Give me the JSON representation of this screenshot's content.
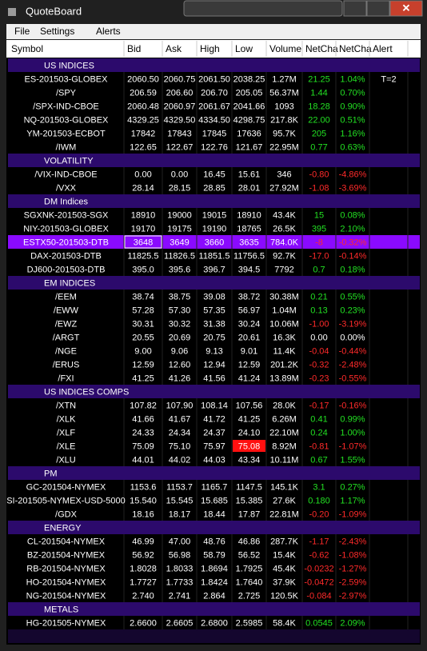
{
  "window": {
    "title": "QuoteBoard"
  },
  "menu": [
    "File",
    "Settings",
    "Alerts"
  ],
  "columns": [
    "Symbol",
    "Bid",
    "Ask",
    "High",
    "Low",
    "Volume",
    "NetCha",
    "NetCha",
    "Alert"
  ],
  "groups": [
    {
      "name": "US INDICES",
      "rows": [
        {
          "cells": [
            "ES-201503-GLOBEX",
            "2060.50",
            "2060.75",
            "2061.50",
            "2038.25",
            "1.27M",
            "21.25",
            "1.04%",
            "T=2"
          ]
        },
        {
          "cells": [
            "/SPY",
            "206.59",
            "206.60",
            "206.70",
            "205.05",
            "56.37M",
            "1.44",
            "0.70%"
          ]
        },
        {
          "cells": [
            "/SPX-IND-CBOE",
            "2060.48",
            "2060.97",
            "2061.67",
            "2041.66",
            "1093",
            "18.28",
            "0.90%"
          ]
        },
        {
          "cells": [
            "NQ-201503-GLOBEX",
            "4329.25",
            "4329.50",
            "4334.50",
            "4298.75",
            "217.8K",
            "22.00",
            "0.51%"
          ]
        },
        {
          "cells": [
            "YM-201503-ECBOT",
            "17842",
            "17843",
            "17845",
            "17636",
            "95.7K",
            "205",
            "1.16%"
          ]
        },
        {
          "cells": [
            "/IWM",
            "122.65",
            "122.67",
            "122.76",
            "121.67",
            "22.95M",
            "0.77",
            "0.63%"
          ]
        }
      ]
    },
    {
      "name": "VOLATILITY",
      "rows": [
        {
          "cells": [
            "/VIX-IND-CBOE",
            "0.00",
            "0.00",
            "16.45",
            "15.61",
            "346",
            "-0.80",
            "-4.86%"
          ]
        },
        {
          "cells": [
            "/VXX",
            "28.14",
            "28.15",
            "28.85",
            "28.01",
            "27.92M",
            "-1.08",
            "-3.69%"
          ]
        }
      ]
    },
    {
      "name": "DM Indices",
      "rows": [
        {
          "cells": [
            "SGXNK-201503-SGX",
            "18910",
            "19000",
            "19015",
            "18910",
            "43.4K",
            "15",
            "0.08%"
          ]
        },
        {
          "cells": [
            "NIY-201503-GLOBEX",
            "19170",
            "19175",
            "19190",
            "18765",
            "26.5K",
            "395",
            "2.10%"
          ]
        },
        {
          "cells": [
            "ESTX50-201503-DTB",
            "3648",
            "3649",
            "3660",
            "3635",
            "784.0K",
            "-8",
            "-0.32%"
          ],
          "selected": true
        },
        {
          "cells": [
            "DAX-201503-DTB",
            "11825.5",
            "11826.5",
            "11851.5",
            "11756.5",
            "92.7K",
            "-17.0",
            "-0.14%"
          ]
        },
        {
          "cells": [
            "DJ600-201503-DTB",
            "395.0",
            "395.6",
            "396.7",
            "394.5",
            "7792",
            "0.7",
            "0.18%"
          ]
        }
      ]
    },
    {
      "name": "EM INDICES",
      "rows": [
        {
          "cells": [
            "/EEM",
            "38.74",
            "38.75",
            "39.08",
            "38.72",
            "30.38M",
            "0.21",
            "0.55%"
          ]
        },
        {
          "cells": [
            "/EWW",
            "57.28",
            "57.30",
            "57.35",
            "56.97",
            "1.04M",
            "0.13",
            "0.23%"
          ]
        },
        {
          "cells": [
            "/EWZ",
            "30.31",
            "30.32",
            "31.38",
            "30.24",
            "10.06M",
            "-1.00",
            "-3.19%"
          ]
        },
        {
          "cells": [
            "/ARGT",
            "20.55",
            "20.69",
            "20.75",
            "20.61",
            "16.3K",
            "0.00",
            "0.00%"
          ]
        },
        {
          "cells": [
            "/NGE",
            "9.00",
            "9.06",
            "9.13",
            "9.01",
            "11.4K",
            "-0.04",
            "-0.44%"
          ]
        },
        {
          "cells": [
            "/ERUS",
            "12.59",
            "12.60",
            "12.94",
            "12.59",
            "201.2K",
            "-0.32",
            "-2.48%"
          ]
        },
        {
          "cells": [
            "/FXI",
            "41.25",
            "41.26",
            "41.56",
            "41.24",
            "13.89M",
            "-0.23",
            "-0.55%"
          ]
        }
      ]
    },
    {
      "name": "US INDICES COMPS",
      "rows": [
        {
          "cells": [
            "/XTN",
            "107.82",
            "107.90",
            "108.14",
            "107.56",
            "28.0K",
            "-0.17",
            "-0.16%"
          ]
        },
        {
          "cells": [
            "/XLK",
            "41.66",
            "41.67",
            "41.72",
            "41.25",
            "6.26M",
            "0.41",
            "0.99%"
          ]
        },
        {
          "cells": [
            "/XLF",
            "24.33",
            "24.34",
            "24.37",
            "24.10",
            "22.10M",
            "0.24",
            "1.00%"
          ]
        },
        {
          "cells": [
            "/XLE",
            "75.09",
            "75.10",
            "75.97",
            "75.08",
            "8.92M",
            "-0.81",
            "-1.07%"
          ],
          "alert_cell": 4
        },
        {
          "cells": [
            "/XLU",
            "44.01",
            "44.02",
            "44.03",
            "43.34",
            "10.11M",
            "0.67",
            "1.55%"
          ]
        }
      ]
    },
    {
      "name": "PM",
      "rows": [
        {
          "cells": [
            "GC-201504-NYMEX",
            "1153.6",
            "1153.7",
            "1165.7",
            "1147.5",
            "145.1K",
            "3.1",
            "0.27%"
          ]
        },
        {
          "cells": [
            "SI-201505-NYMEX-USD-5000",
            "15.540",
            "15.545",
            "15.685",
            "15.385",
            "27.6K",
            "0.180",
            "1.17%"
          ]
        },
        {
          "cells": [
            "/GDX",
            "18.16",
            "18.17",
            "18.44",
            "17.87",
            "22.81M",
            "-0.20",
            "-1.09%"
          ]
        }
      ]
    },
    {
      "name": "ENERGY",
      "rows": [
        {
          "cells": [
            "CL-201504-NYMEX",
            "46.99",
            "47.00",
            "48.76",
            "46.86",
            "287.7K",
            "-1.17",
            "-2.43%"
          ]
        },
        {
          "cells": [
            "BZ-201504-NYMEX",
            "56.92",
            "56.98",
            "58.79",
            "56.52",
            "15.4K",
            "-0.62",
            "-1.08%"
          ]
        },
        {
          "cells": [
            "RB-201504-NYMEX",
            "1.8028",
            "1.8033",
            "1.8694",
            "1.7925",
            "45.4K",
            "-0.0232",
            "-1.27%"
          ]
        },
        {
          "cells": [
            "HO-201504-NYMEX",
            "1.7727",
            "1.7733",
            "1.8424",
            "1.7640",
            "37.9K",
            "-0.0472",
            "-2.59%"
          ]
        },
        {
          "cells": [
            "NG-201504-NYMEX",
            "2.740",
            "2.741",
            "2.864",
            "2.725",
            "120.5K",
            "-0.084",
            "-2.97%"
          ]
        }
      ]
    },
    {
      "name": "METALS",
      "rows": [
        {
          "cells": [
            "HG-201505-NYMEX",
            "2.6600",
            "2.6605",
            "2.6800",
            "2.5985",
            "58.4K",
            "0.0545",
            "2.09%"
          ]
        }
      ]
    }
  ]
}
